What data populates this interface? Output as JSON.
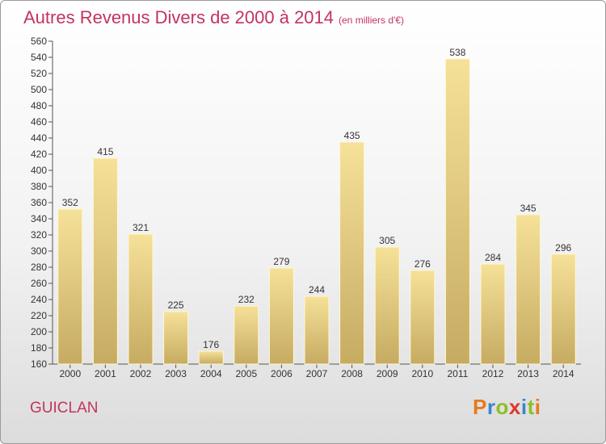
{
  "header": {
    "title": "Autres Revenus Divers de 2000 à 2014",
    "unit": "(en milliers d'€)"
  },
  "footer": {
    "commune": "GUICLAN",
    "logo_text": "Proxiti"
  },
  "colors": {
    "title": "#c4335e",
    "bar_light": "#f6e199",
    "bar_dark": "#c6ab62"
  },
  "chart_data": {
    "type": "bar",
    "title": "Autres Revenus Divers de 2000 à 2014",
    "subtitle": "(en milliers d'€)",
    "xlabel": "",
    "ylabel": "",
    "categories": [
      "2000",
      "2001",
      "2002",
      "2003",
      "2004",
      "2005",
      "2006",
      "2007",
      "2008",
      "2009",
      "2010",
      "2011",
      "2012",
      "2013",
      "2014"
    ],
    "values": [
      352,
      415,
      321,
      225,
      176,
      232,
      279,
      244,
      435,
      305,
      276,
      538,
      284,
      345,
      296
    ],
    "ylim": [
      160,
      560
    ],
    "ytick_step": 20,
    "grid": false,
    "data_labels": true
  }
}
